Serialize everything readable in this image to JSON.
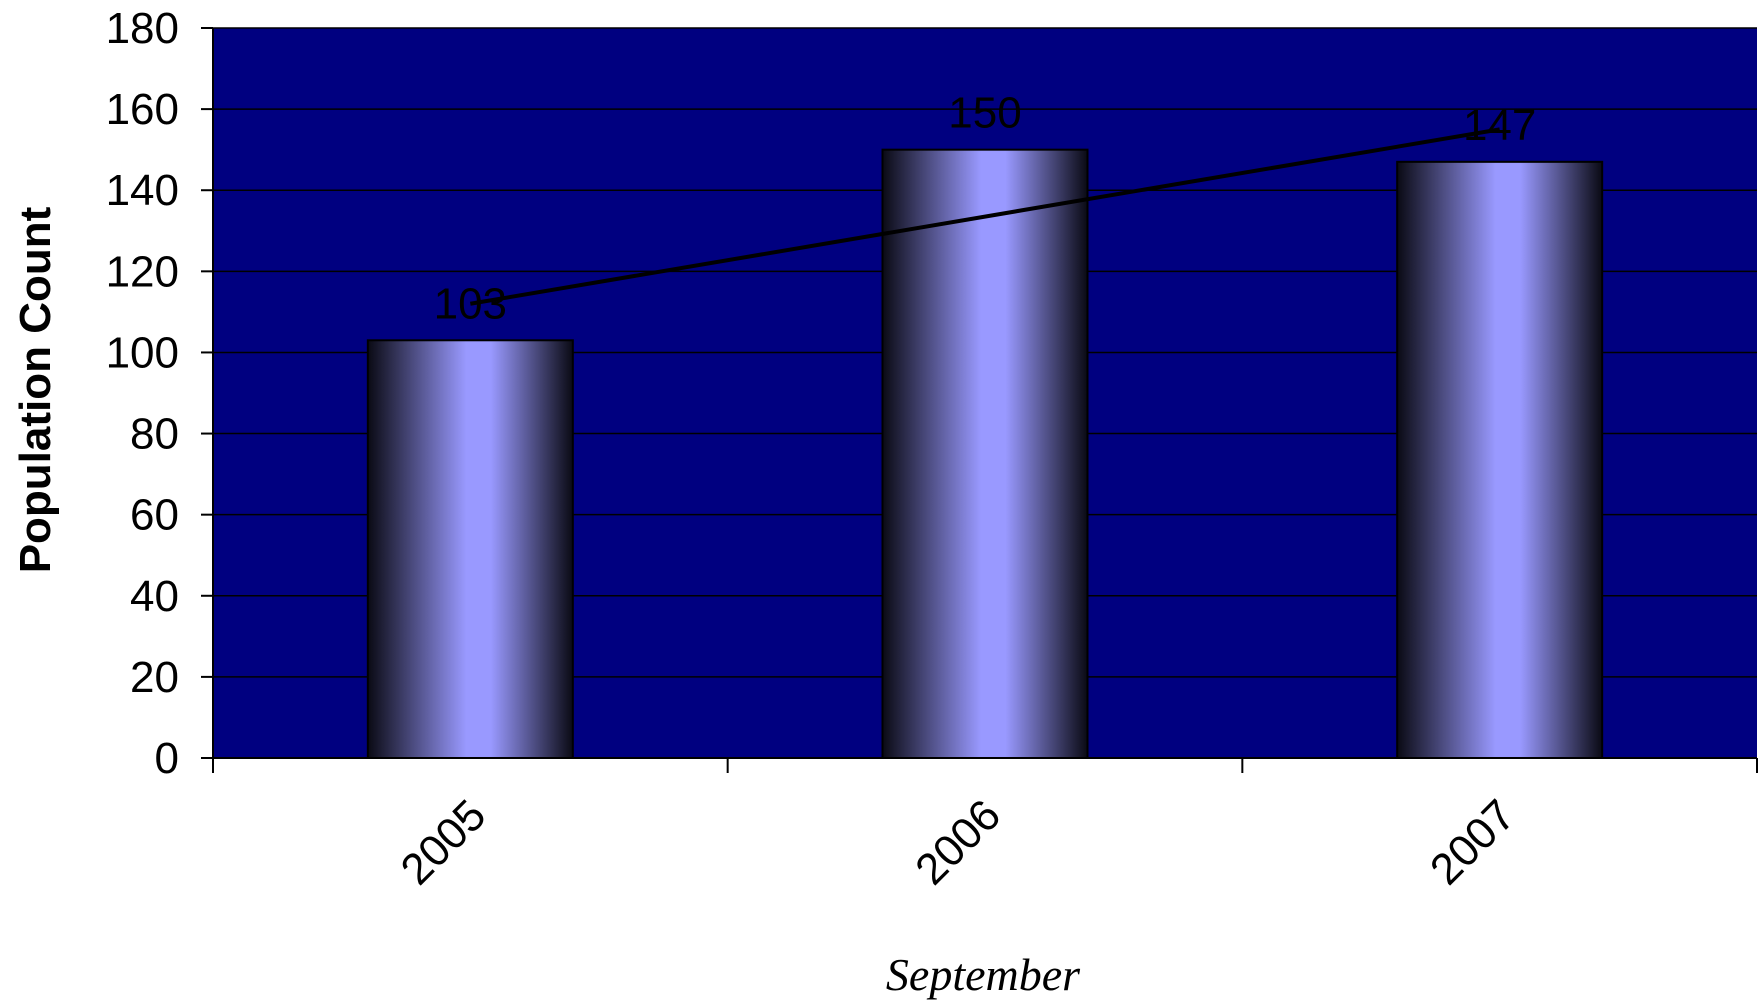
{
  "chart_data": {
    "type": "bar",
    "categories": [
      "2005",
      "2006",
      "2007"
    ],
    "values": [
      103,
      150,
      147
    ],
    "data_labels": [
      "103",
      "150",
      "147"
    ],
    "trendline": {
      "type": "linear",
      "start": 112,
      "end": 155
    },
    "title": "",
    "xlabel": "September",
    "ylabel": "Population Count",
    "ylim": [
      0,
      180
    ],
    "yticks": [
      0,
      20,
      40,
      60,
      80,
      100,
      120,
      140,
      160,
      180
    ],
    "grid": true,
    "legend": "none",
    "colors": {
      "plot_background": "#000080",
      "bar_center": "#9999ff",
      "bar_edge": "#0a0a14",
      "gridline": "#000000",
      "trendline": "#000000"
    }
  }
}
